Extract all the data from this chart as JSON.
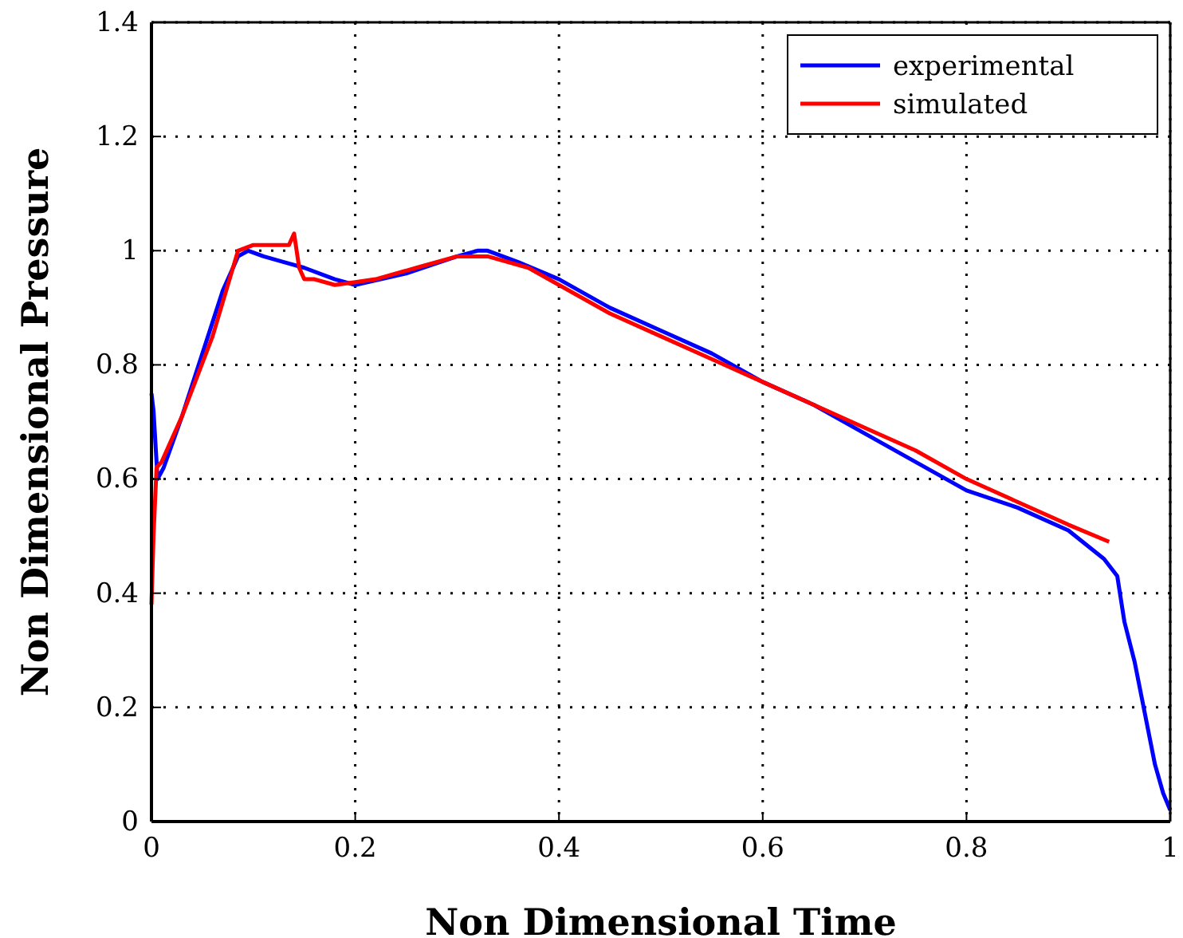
{
  "chart_data": {
    "type": "line",
    "xlabel": "Non Dimensional Time",
    "ylabel": "Non Dimensional Pressure",
    "xlim": [
      0,
      1
    ],
    "ylim": [
      0,
      1.4
    ],
    "xticks": [
      0,
      0.2,
      0.4,
      0.6,
      0.8,
      1
    ],
    "yticks": [
      0,
      0.2,
      0.4,
      0.6,
      0.8,
      1,
      1.2,
      1.4
    ],
    "grid": true,
    "legend": "top right",
    "line_style": "solid",
    "marker": "none",
    "series": [
      {
        "name": "experimental",
        "color": "#0000ff",
        "x": [
          0,
          0.002,
          0.006,
          0.012,
          0.03,
          0.05,
          0.07,
          0.085,
          0.095,
          0.11,
          0.13,
          0.15,
          0.18,
          0.2,
          0.25,
          0.3,
          0.32,
          0.33,
          0.36,
          0.4,
          0.45,
          0.5,
          0.55,
          0.6,
          0.65,
          0.7,
          0.75,
          0.8,
          0.85,
          0.9,
          0.935,
          0.948,
          0.955,
          0.965,
          0.975,
          0.985,
          0.993,
          1
        ],
        "values": [
          0.75,
          0.72,
          0.6,
          0.62,
          0.71,
          0.82,
          0.93,
          0.99,
          1.0,
          0.99,
          0.98,
          0.97,
          0.95,
          0.94,
          0.96,
          0.99,
          1.0,
          1.0,
          0.98,
          0.95,
          0.9,
          0.86,
          0.82,
          0.77,
          0.73,
          0.68,
          0.63,
          0.58,
          0.55,
          0.51,
          0.46,
          0.43,
          0.35,
          0.28,
          0.19,
          0.1,
          0.05,
          0.02
        ]
      },
      {
        "name": "simulated",
        "color": "#ff0000",
        "x": [
          0,
          0.002,
          0.005,
          0.01,
          0.03,
          0.06,
          0.085,
          0.1,
          0.12,
          0.135,
          0.14,
          0.145,
          0.15,
          0.16,
          0.18,
          0.2,
          0.22,
          0.26,
          0.3,
          0.33,
          0.37,
          0.4,
          0.45,
          0.5,
          0.55,
          0.6,
          0.65,
          0.7,
          0.75,
          0.8,
          0.85,
          0.9,
          0.94
        ],
        "values": [
          0.38,
          0.5,
          0.62,
          0.63,
          0.71,
          0.85,
          1.0,
          1.01,
          1.01,
          1.01,
          1.03,
          0.97,
          0.95,
          0.95,
          0.94,
          0.945,
          0.95,
          0.97,
          0.99,
          0.99,
          0.97,
          0.94,
          0.89,
          0.85,
          0.81,
          0.77,
          0.73,
          0.69,
          0.65,
          0.6,
          0.56,
          0.52,
          0.49
        ]
      }
    ]
  }
}
